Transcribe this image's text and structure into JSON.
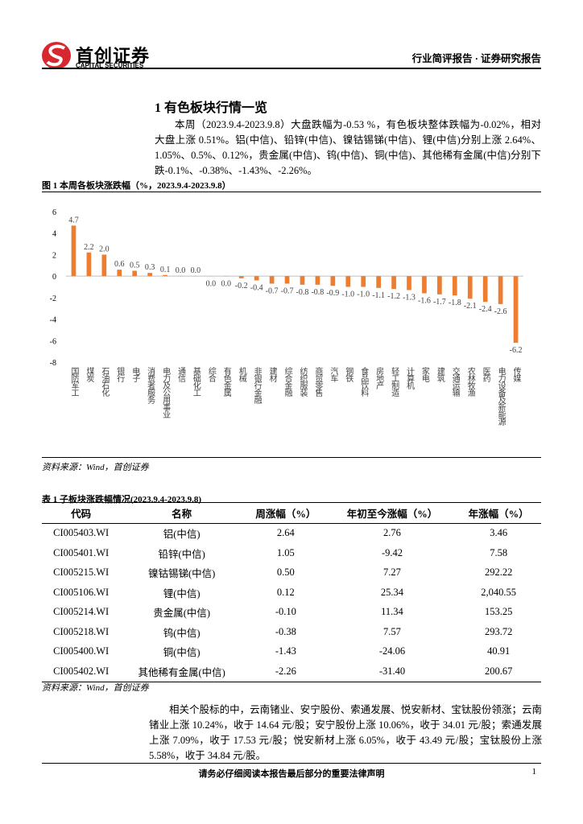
{
  "header": {
    "brand": "首创证券",
    "brand_en": "CAPITAL SECURITIES",
    "report_type": "行业简评报告 · 证券研究报告"
  },
  "section_title": "1 有色板块行情一览",
  "paragraph_1": "本周（2023.9.4-2023.9.8）大盘跌幅为-0.53 %，有色板块整体跌幅为-0.02%，相对大盘上涨 0.51%。铝(中信)、铅锌(中信)、镍钴锡锑(中信)、锂(中信)分别上涨 2.64%、1.05%、0.5%、0.12%，贵金属(中信)、钨(中信)、铜(中信)、其他稀有金属(中信)分别下跌-0.1%、-0.38%、-1.43%、-2.26%。",
  "figure_caption": "图 1 本周各板块涨跌幅（%，2023.9.4-2023.9.8）",
  "chart_data": {
    "type": "bar",
    "color": "#ed7d31",
    "categories": [
      "国防军工",
      "煤炭",
      "石油石化",
      "银行",
      "电子",
      "消费者服务",
      "电力及公用事业",
      "通信",
      "基础化工",
      "综合",
      "有色金属",
      "机械",
      "非银行金融",
      "建材",
      "综合金融",
      "纺织服装",
      "商贸零售",
      "汽车",
      "钢铁",
      "食品饮料",
      "房地产",
      "轻工制造",
      "计算机",
      "家电",
      "建筑",
      "交通运输",
      "农林牧渔",
      "医药",
      "电力设备及新能源",
      "传媒"
    ],
    "values": [
      4.7,
      2.2,
      2.0,
      0.6,
      0.5,
      0.3,
      0.1,
      0.02,
      0.01,
      -0.01,
      -0.02,
      -0.2,
      -0.4,
      -0.7,
      -0.7,
      -0.8,
      -0.8,
      -0.9,
      -1.0,
      -1.0,
      -1.1,
      -1.2,
      -1.3,
      -1.6,
      -1.7,
      -1.8,
      -2.1,
      -2.4,
      -2.6,
      -6.2
    ],
    "value_labels": [
      "4.7",
      "2.2",
      "2.0",
      "0.6",
      "0.5",
      "0.3",
      "0.1",
      "0.0",
      "0.0",
      "0.0",
      "0.0",
      "-0.2",
      "-0.4",
      "-0.7",
      "-0.7",
      "-0.8",
      "-0.8",
      "-0.9",
      "-1.0",
      "-1.0",
      "-1.1",
      "-1.2",
      "-1.3",
      "-1.6",
      "-1.7",
      "-1.8",
      "-2.1",
      "-2.4",
      "-2.6",
      "-6.2"
    ],
    "ylim": [
      -8,
      6
    ],
    "yticks": [
      -8,
      -6,
      -4,
      -2,
      0,
      2,
      4,
      6
    ]
  },
  "figure_source": "资料来源：Wind，首创证券",
  "table_caption": "表 1 子板块涨跌幅情况(2023.9.4-2023.9.8)",
  "table": {
    "header": [
      "代码",
      "名称",
      "周涨幅（%）",
      "年初至今涨幅（%）",
      "年涨幅（%）"
    ],
    "rows": [
      [
        "CI005403.WI",
        "铝(中信)",
        "2.64",
        "2.76",
        "3.46"
      ],
      [
        "CI005401.WI",
        "铅锌(中信)",
        "1.05",
        "-9.42",
        "7.58"
      ],
      [
        "CI005215.WI",
        "镍钴锡锑(中信)",
        "0.50",
        "7.27",
        "292.22"
      ],
      [
        "CI005106.WI",
        "锂(中信)",
        "0.12",
        "25.34",
        "2,040.55"
      ],
      [
        "CI005214.WI",
        "贵金属(中信)",
        "-0.10",
        "11.34",
        "153.25"
      ],
      [
        "CI005218.WI",
        "钨(中信)",
        "-0.38",
        "7.57",
        "293.72"
      ],
      [
        "CI005400.WI",
        "铜(中信)",
        "-1.43",
        "-24.06",
        "40.91"
      ],
      [
        "CI005402.WI",
        "其他稀有金属(中信)",
        "-2.26",
        "-31.40",
        "200.67"
      ]
    ]
  },
  "table_source": "资料来源：Wind，首创证券",
  "paragraph_2": "相关个股标的中，云南锗业、安宁股份、索通发展、悦安新材、宝钛股份领涨；云南锗业上涨 10.24%，收于 14.64 元/股；安宁股份上涨 10.06%，收于 34.01 元/股；索通发展上涨 7.09%，收于 17.53 元/股；悦安新材上涨 6.05%，收于 43.49 元/股；宝钛股份上涨 5.58%，收于 34.84 元/股。",
  "footer": {
    "disclaimer": "请务必仔细阅读本报告最后部分的重要法律声明",
    "page": "1"
  }
}
